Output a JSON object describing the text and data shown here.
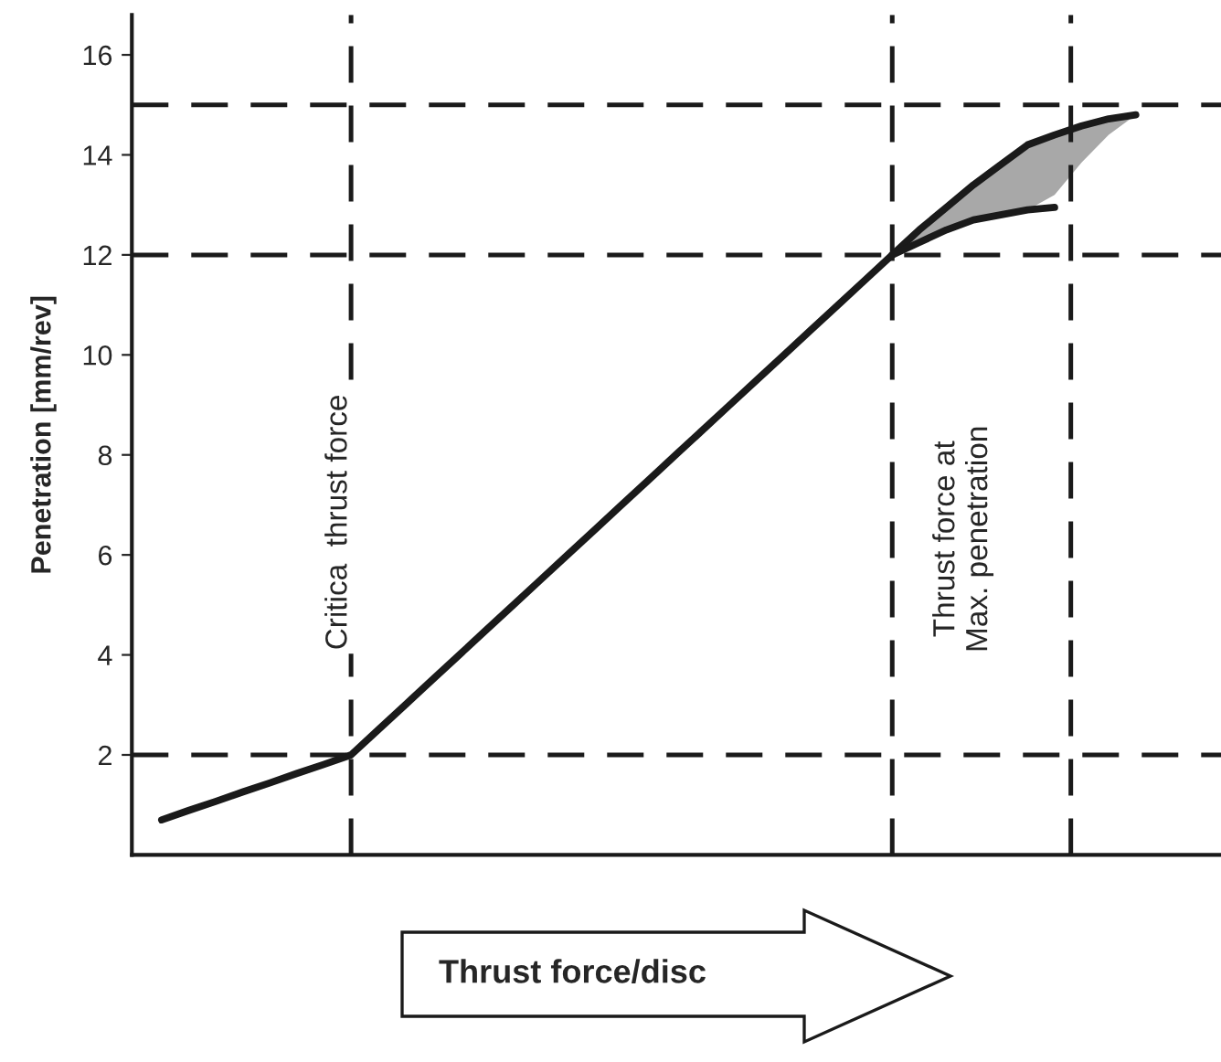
{
  "chart_data": {
    "type": "line",
    "xlabel": "Thrust force/disc",
    "ylabel": "Penetration [mm/rev]",
    "categories": [
      null,
      null,
      null,
      null,
      null,
      null,
      null,
      null,
      null,
      null,
      null,
      null,
      null,
      null,
      null,
      null,
      null,
      null,
      null,
      null,
      null,
      null,
      null,
      null,
      null,
      null,
      null,
      null,
      null,
      null,
      null,
      null,
      null,
      null,
      null,
      null,
      null,
      null,
      null,
      null,
      null
    ],
    "ylim": [
      0,
      16.8
    ],
    "yticks": [
      2,
      4,
      6,
      8,
      10,
      12,
      14,
      16
    ],
    "tick_labels": "y",
    "grid": false,
    "marker": "none",
    "line_style": "solid",
    "series": [
      {
        "color": "#1a1a1a",
        "values": [
          null,
          0.7,
          0.89,
          1.07,
          1.26,
          1.44,
          1.63,
          1.81,
          2.0,
          2.5,
          3.0,
          3.5,
          4.0,
          4.5,
          5.0,
          5.5,
          6.0,
          6.5,
          7.0,
          7.5,
          8.0,
          8.5,
          9.0,
          9.5,
          10.0,
          10.5,
          11.0,
          11.5,
          12.0,
          12.5,
          12.95,
          13.4,
          13.8,
          14.2,
          14.4,
          14.58,
          14.72,
          14.8,
          null,
          null,
          null
        ],
        "lower": [
          null,
          null,
          null,
          null,
          null,
          null,
          null,
          null,
          null,
          null,
          null,
          null,
          null,
          null,
          null,
          null,
          null,
          null,
          null,
          null,
          null,
          null,
          null,
          null,
          null,
          null,
          null,
          null,
          12.0,
          12.25,
          12.5,
          12.7,
          12.8,
          12.9,
          13.2,
          13.85,
          14.4,
          14.8,
          null,
          null,
          null
        ],
        "upper": [
          null,
          null,
          null,
          null,
          null,
          null,
          null,
          null,
          null,
          null,
          null,
          null,
          null,
          null,
          null,
          null,
          null,
          null,
          null,
          null,
          null,
          null,
          null,
          null,
          null,
          null,
          null,
          null,
          12.0,
          12.5,
          12.95,
          13.4,
          13.8,
          14.2,
          14.4,
          14.58,
          14.72,
          14.8,
          null,
          null,
          null
        ]
      },
      {
        "color": "#1a1a1a",
        "values": [
          null,
          null,
          null,
          null,
          null,
          null,
          null,
          null,
          null,
          null,
          null,
          null,
          null,
          null,
          null,
          null,
          null,
          null,
          null,
          null,
          null,
          null,
          null,
          null,
          null,
          null,
          null,
          null,
          12.0,
          12.25,
          12.5,
          12.7,
          12.8,
          12.9,
          12.95,
          null,
          null,
          null,
          null,
          null,
          null
        ]
      }
    ],
    "ref_lines": [
      {
        "axis": "y",
        "value": 2,
        "color": "#1a1a1a",
        "line_style": "dashed"
      },
      {
        "axis": "y",
        "value": 12,
        "color": "#1a1a1a",
        "line_style": "dashed"
      },
      {
        "axis": "y",
        "value": 15,
        "color": "#1a1a1a",
        "line_style": "dashed"
      }
    ],
    "annotations": [
      "Critica  thrust force",
      "Thrust force at\nMax. penetration"
    ]
  }
}
